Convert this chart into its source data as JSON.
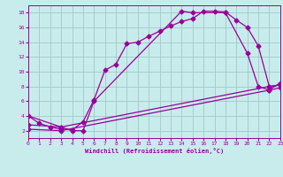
{
  "xlabel": "Windchill (Refroidissement éolien,°C)",
  "bg_color": "#c8ecec",
  "grid_color": "#a0c8c8",
  "line_color": "#990099",
  "xlim": [
    0,
    23
  ],
  "ylim": [
    1,
    19
  ],
  "xticks": [
    0,
    1,
    2,
    3,
    4,
    5,
    6,
    7,
    8,
    9,
    10,
    11,
    12,
    13,
    14,
    15,
    16,
    17,
    18,
    19,
    20,
    21,
    22,
    23
  ],
  "yticks": [
    2,
    4,
    6,
    8,
    10,
    12,
    14,
    16,
    18
  ],
  "curve1_x": [
    0,
    1,
    2,
    3,
    4,
    5,
    6,
    7,
    8,
    9,
    10,
    11,
    12,
    13,
    14,
    15,
    16,
    17,
    18,
    19,
    20,
    21,
    22,
    23
  ],
  "curve1_y": [
    4,
    3,
    2.5,
    2.2,
    2.1,
    3.2,
    6.2,
    10.2,
    11.0,
    13.8,
    14.0,
    14.8,
    15.5,
    16.2,
    16.8,
    17.2,
    18.2,
    18.2,
    18.1,
    17.0,
    16.0,
    13.5,
    8.0,
    8.2
  ],
  "curve2_x": [
    0,
    3,
    4,
    5,
    6,
    14,
    15,
    18,
    20,
    21,
    22,
    23
  ],
  "curve2_y": [
    4.0,
    2.5,
    2.0,
    2.0,
    6.0,
    18.2,
    18.0,
    18.0,
    12.5,
    8.0,
    7.5,
    8.5
  ],
  "curve3_x": [
    0,
    3,
    22,
    23
  ],
  "curve3_y": [
    2.8,
    2.5,
    8.0,
    8.2
  ],
  "curve4_x": [
    0,
    3,
    22,
    23
  ],
  "curve4_y": [
    2.2,
    2.0,
    7.5,
    7.8
  ],
  "markersize": 2.5,
  "linewidth": 0.9
}
